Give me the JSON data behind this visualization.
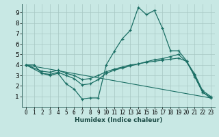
{
  "xlabel": "Humidex (Indice chaleur)",
  "bg_color": "#c8e8e4",
  "grid_color": "#a8c8c4",
  "line_color": "#1a6e64",
  "xlim": [
    -0.5,
    23.5
  ],
  "ylim": [
    0,
    9.8
  ],
  "xticks": [
    0,
    1,
    2,
    3,
    4,
    5,
    6,
    7,
    8,
    9,
    10,
    11,
    12,
    13,
    14,
    15,
    16,
    17,
    18,
    19,
    20,
    21,
    22,
    23
  ],
  "yticks": [
    1,
    2,
    3,
    4,
    5,
    6,
    7,
    8,
    9
  ],
  "line1_x": [
    0,
    1,
    2,
    3,
    4,
    5,
    6,
    7,
    8,
    9,
    10,
    11,
    12,
    13,
    14,
    15,
    16,
    17,
    18,
    19,
    20,
    21,
    22,
    23
  ],
  "line1_y": [
    4.0,
    4.0,
    3.2,
    3.0,
    3.2,
    2.2,
    1.7,
    0.75,
    0.85,
    0.85,
    4.0,
    5.3,
    6.5,
    7.3,
    9.5,
    8.8,
    9.2,
    7.5,
    5.35,
    5.35,
    4.4,
    2.9,
    1.4,
    0.85
  ],
  "line2_x": [
    0,
    2,
    3,
    4,
    5,
    6,
    7,
    8,
    9,
    10,
    11,
    12,
    13,
    14,
    15,
    16,
    17,
    18,
    19,
    20,
    21,
    22,
    23
  ],
  "line2_y": [
    4.0,
    3.2,
    3.1,
    3.3,
    3.0,
    2.7,
    2.1,
    2.2,
    2.6,
    3.2,
    3.5,
    3.7,
    3.9,
    4.1,
    4.3,
    4.5,
    4.6,
    4.8,
    5.0,
    4.3,
    3.0,
    1.4,
    0.9
  ],
  "line3_x": [
    0,
    2,
    3,
    4,
    5,
    6,
    7,
    8,
    9,
    10,
    11,
    12,
    13,
    14,
    15,
    16,
    17,
    18,
    19,
    20,
    21,
    22,
    23
  ],
  "line3_y": [
    4.0,
    3.4,
    3.3,
    3.5,
    3.2,
    3.0,
    2.6,
    2.7,
    3.0,
    3.35,
    3.6,
    3.8,
    4.0,
    4.1,
    4.25,
    4.35,
    4.45,
    4.55,
    4.65,
    4.35,
    3.15,
    1.55,
    1.0
  ],
  "line4_x": [
    0,
    23
  ],
  "line4_y": [
    4.0,
    0.85
  ]
}
